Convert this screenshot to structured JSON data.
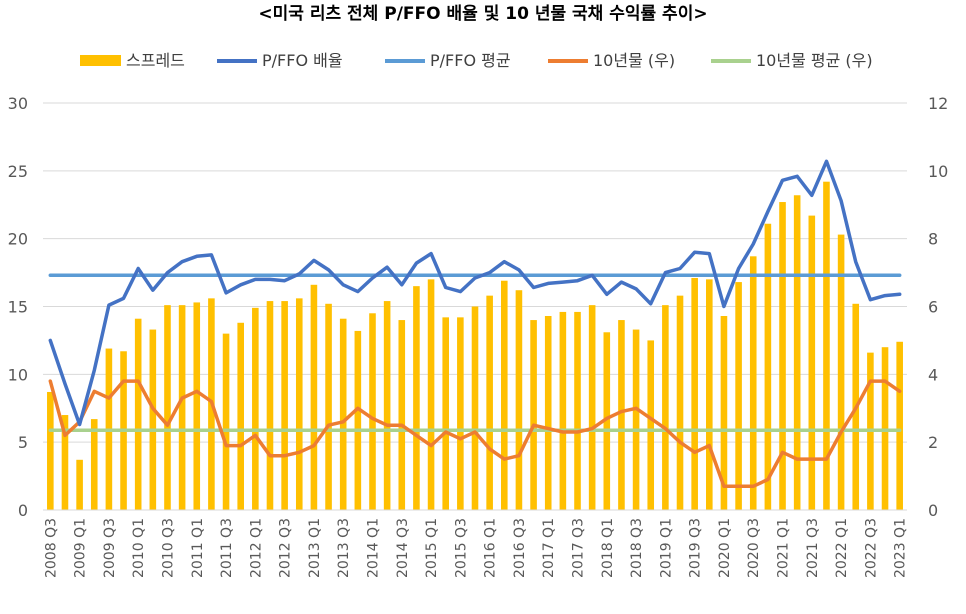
{
  "chart_data": {
    "type": "bar+line",
    "title": "<미국 리츠 전체 P/FFO 배율 및 10 년물 국채 수익률 추이>",
    "legend": {
      "placement": "top",
      "entries": [
        "스프레드",
        "P/FFO 배율",
        "P/FFO 평균",
        "10년물 (우)",
        "10년물 평균 (우)"
      ]
    },
    "colors": {
      "spread": "#FFC000",
      "pffo": "#4472C4",
      "pffo_avg": "#5B9BD5",
      "treasury": "#ED7D31",
      "treasury_avg": "#A9D18E",
      "grid": "#D9D9D9"
    },
    "y_left": {
      "min": 0,
      "max": 30,
      "ticks": [
        0,
        5,
        10,
        15,
        20,
        25,
        30
      ]
    },
    "y_right": {
      "min": 0,
      "max": 12,
      "ticks": [
        0,
        2,
        4,
        6,
        8,
        10,
        12
      ]
    },
    "x_tick_labels": [
      "2008 Q3",
      "2009 Q1",
      "2009 Q3",
      "2010 Q1",
      "2010 Q3",
      "2011 Q1",
      "2011 Q3",
      "2012 Q1",
      "2012 Q3",
      "2013 Q1",
      "2013 Q3",
      "2014 Q1",
      "2014 Q3",
      "2015 Q1",
      "2015 Q3",
      "2016 Q1",
      "2016 Q3",
      "2017 Q1",
      "2017 Q3",
      "2018 Q1",
      "2018 Q3",
      "2019 Q1",
      "2019 Q3",
      "2020 Q1",
      "2020 Q3",
      "2021 Q1",
      "2021 Q3",
      "2022 Q1",
      "2022 Q3",
      "2023 Q1"
    ],
    "categories": [
      "2008 Q3",
      "2008 Q4",
      "2009 Q1",
      "2009 Q2",
      "2009 Q3",
      "2009 Q4",
      "2010 Q1",
      "2010 Q2",
      "2010 Q3",
      "2010 Q4",
      "2011 Q1",
      "2011 Q2",
      "2011 Q3",
      "2011 Q4",
      "2012 Q1",
      "2012 Q2",
      "2012 Q3",
      "2012 Q4",
      "2013 Q1",
      "2013 Q2",
      "2013 Q3",
      "2013 Q4",
      "2014 Q1",
      "2014 Q2",
      "2014 Q3",
      "2014 Q4",
      "2015 Q1",
      "2015 Q2",
      "2015 Q3",
      "2015 Q4",
      "2016 Q1",
      "2016 Q2",
      "2016 Q3",
      "2016 Q4",
      "2017 Q1",
      "2017 Q2",
      "2017 Q3",
      "2017 Q4",
      "2018 Q1",
      "2018 Q2",
      "2018 Q3",
      "2018 Q4",
      "2019 Q1",
      "2019 Q2",
      "2019 Q3",
      "2019 Q4",
      "2020 Q1",
      "2020 Q2",
      "2020 Q3",
      "2020 Q4",
      "2021 Q1",
      "2021 Q2",
      "2021 Q3",
      "2021 Q4",
      "2022 Q1",
      "2022 Q2",
      "2022 Q3",
      "2022 Q4",
      "2023 Q1"
    ],
    "series": [
      {
        "name": "스프레드",
        "type": "bar",
        "axis": "left",
        "values": [
          8.7,
          7.0,
          3.7,
          6.7,
          11.9,
          11.7,
          14.1,
          13.3,
          15.1,
          15.1,
          15.3,
          15.6,
          13.0,
          13.8,
          14.9,
          15.4,
          15.4,
          15.6,
          16.6,
          15.2,
          14.1,
          13.2,
          14.5,
          15.4,
          14.0,
          16.5,
          17.0,
          14.2,
          14.2,
          15.0,
          15.8,
          16.9,
          16.2,
          14.0,
          14.3,
          14.6,
          14.6,
          15.1,
          13.1,
          14.0,
          13.3,
          12.5,
          15.1,
          15.8,
          17.1,
          17.0,
          14.3,
          16.8,
          18.7,
          21.1,
          22.7,
          23.2,
          21.7,
          24.2,
          20.3,
          15.2,
          11.6,
          12.0,
          12.4
        ]
      },
      {
        "name": "P/FFO 배율",
        "type": "line",
        "axis": "left",
        "values": [
          12.5,
          9.3,
          6.3,
          10.3,
          15.1,
          15.6,
          17.8,
          16.2,
          17.5,
          18.3,
          18.7,
          18.8,
          16.0,
          16.6,
          17.0,
          17.0,
          16.9,
          17.4,
          18.4,
          17.7,
          16.6,
          16.1,
          17.1,
          17.9,
          16.6,
          18.2,
          18.9,
          16.4,
          16.1,
          17.1,
          17.5,
          18.3,
          17.7,
          16.4,
          16.7,
          16.8,
          16.9,
          17.3,
          15.9,
          16.8,
          16.3,
          15.2,
          17.5,
          17.8,
          19.0,
          18.9,
          15.0,
          17.8,
          19.6,
          22.0,
          24.3,
          24.6,
          23.2,
          25.7,
          22.8,
          18.3,
          15.5,
          15.8,
          15.9
        ]
      },
      {
        "name": "P/FFO 평균",
        "type": "line",
        "axis": "left",
        "values": [
          17.3,
          17.3,
          17.3,
          17.3,
          17.3,
          17.3,
          17.3,
          17.3,
          17.3,
          17.3,
          17.3,
          17.3,
          17.3,
          17.3,
          17.3,
          17.3,
          17.3,
          17.3,
          17.3,
          17.3,
          17.3,
          17.3,
          17.3,
          17.3,
          17.3,
          17.3,
          17.3,
          17.3,
          17.3,
          17.3,
          17.3,
          17.3,
          17.3,
          17.3,
          17.3,
          17.3,
          17.3,
          17.3,
          17.3,
          17.3,
          17.3,
          17.3,
          17.3,
          17.3,
          17.3,
          17.3,
          17.3,
          17.3,
          17.3,
          17.3,
          17.3,
          17.3,
          17.3,
          17.3,
          17.3,
          17.3,
          17.3,
          17.3,
          17.3
        ]
      },
      {
        "name": "10년물 (우)",
        "type": "line",
        "axis": "right",
        "values": [
          3.8,
          2.2,
          2.6,
          3.5,
          3.3,
          3.8,
          3.8,
          3.0,
          2.5,
          3.3,
          3.5,
          3.2,
          1.9,
          1.9,
          2.2,
          1.6,
          1.6,
          1.7,
          1.9,
          2.5,
          2.6,
          3.0,
          2.7,
          2.5,
          2.5,
          2.2,
          1.9,
          2.3,
          2.1,
          2.3,
          1.8,
          1.5,
          1.6,
          2.5,
          2.4,
          2.3,
          2.3,
          2.4,
          2.7,
          2.9,
          3.0,
          2.7,
          2.4,
          2.0,
          1.7,
          1.9,
          0.7,
          0.7,
          0.7,
          0.9,
          1.7,
          1.5,
          1.5,
          1.5,
          2.3,
          3.0,
          3.8,
          3.8,
          3.5
        ]
      },
      {
        "name": "10년물 평균 (우)",
        "type": "line",
        "axis": "right",
        "values": [
          2.35,
          2.35,
          2.35,
          2.35,
          2.35,
          2.35,
          2.35,
          2.35,
          2.35,
          2.35,
          2.35,
          2.35,
          2.35,
          2.35,
          2.35,
          2.35,
          2.35,
          2.35,
          2.35,
          2.35,
          2.35,
          2.35,
          2.35,
          2.35,
          2.35,
          2.35,
          2.35,
          2.35,
          2.35,
          2.35,
          2.35,
          2.35,
          2.35,
          2.35,
          2.35,
          2.35,
          2.35,
          2.35,
          2.35,
          2.35,
          2.35,
          2.35,
          2.35,
          2.35,
          2.35,
          2.35,
          2.35,
          2.35,
          2.35,
          2.35,
          2.35,
          2.35,
          2.35,
          2.35,
          2.35,
          2.35,
          2.35,
          2.35,
          2.35
        ]
      }
    ]
  }
}
